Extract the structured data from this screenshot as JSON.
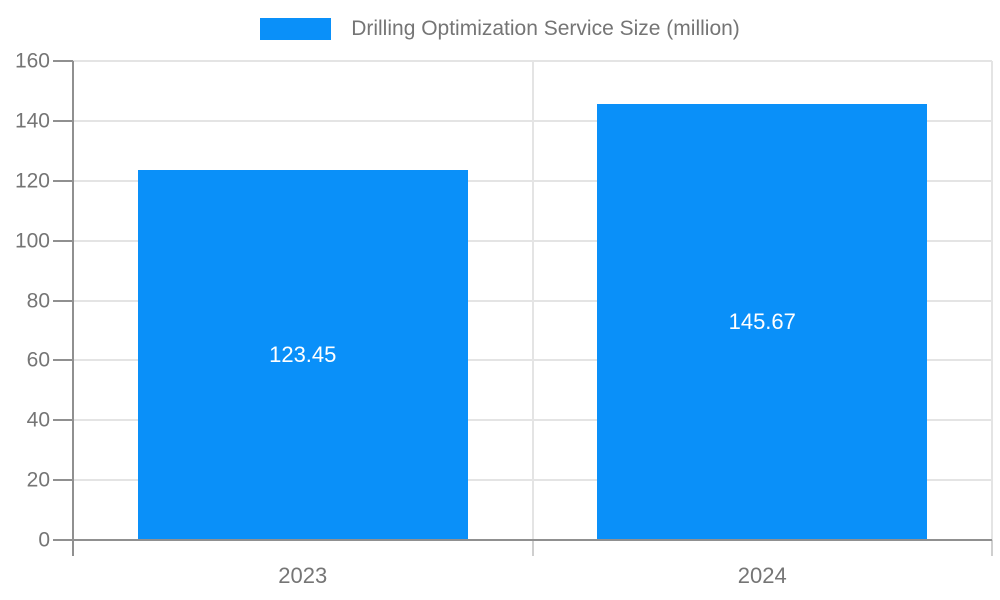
{
  "legend": {
    "label": "Drilling Optimization Service Size (million)"
  },
  "chart_data": {
    "type": "bar",
    "title": "Drilling Optimization Service Size (million)",
    "categories": [
      "2023",
      "2024"
    ],
    "series": [
      {
        "name": "Drilling Optimization Service Size (million)",
        "values": [
          123.45,
          145.67
        ]
      }
    ],
    "value_labels": [
      "123.45",
      "145.67"
    ],
    "xlabel": "",
    "ylabel": "",
    "ylim": [
      0,
      160
    ],
    "ytick_step": 20,
    "ytick_labels": [
      "0",
      "20",
      "40",
      "60",
      "80",
      "100",
      "120",
      "140",
      "160"
    ],
    "grid": true,
    "legend_position": "top-center",
    "colors": {
      "bar": "#0a90f9",
      "value_label": "#ffffff",
      "axis_text": "#757575",
      "axis_line": "#909090",
      "gridline": "#e4e4e4",
      "bottom_tick": "#cfcfcf",
      "background": "#ffffff"
    }
  }
}
